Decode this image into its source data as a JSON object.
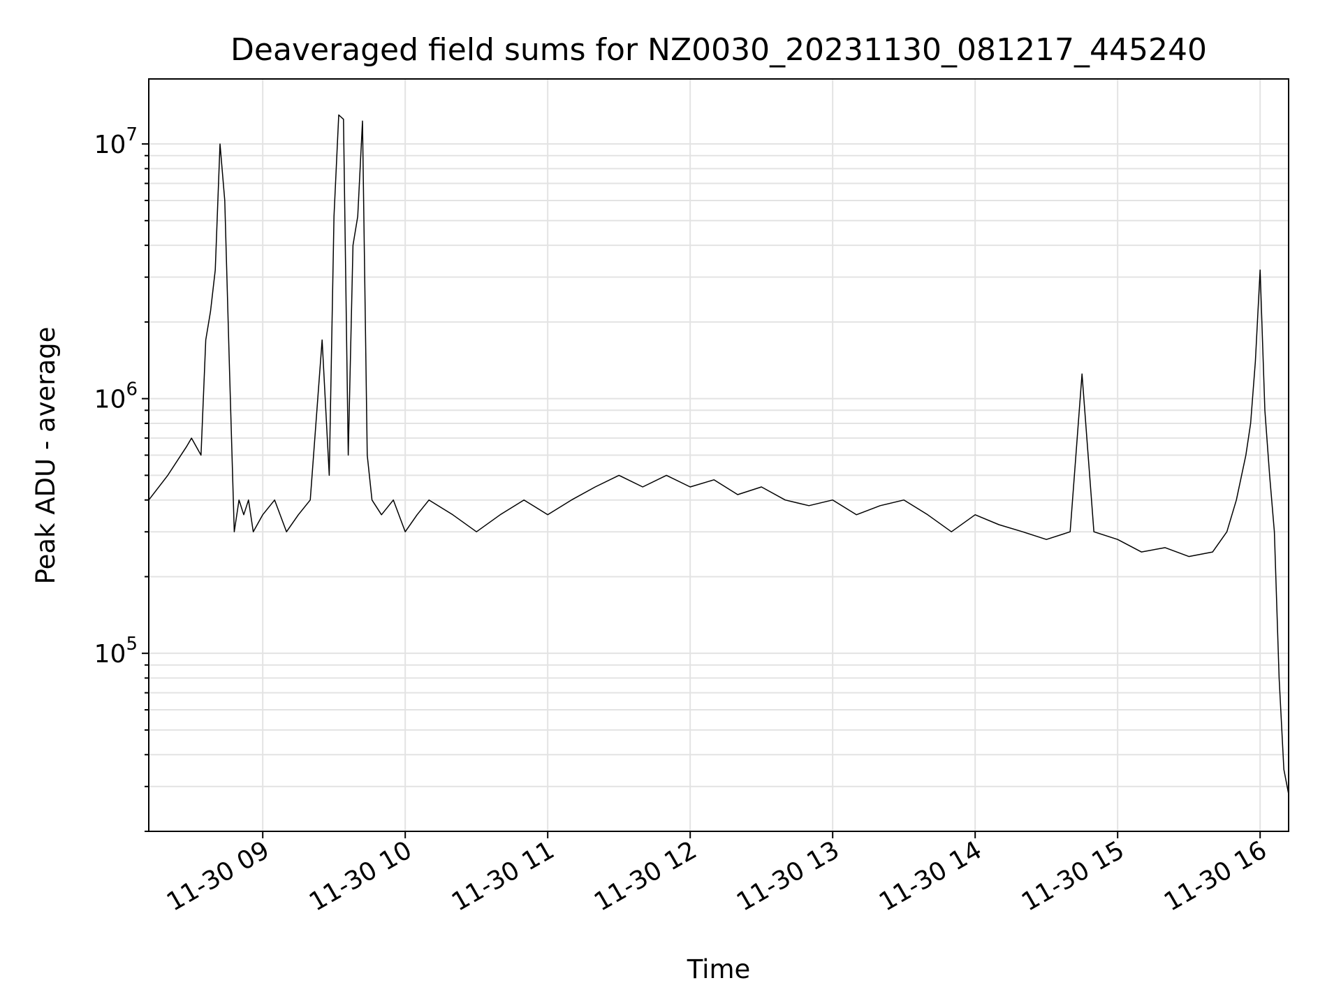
{
  "chart_data": {
    "type": "line",
    "title": "Deaveraged field sums for NZ0030_20231130_081217_445240",
    "xlabel": "Time",
    "ylabel": "Peak ADU - average",
    "yscale": "log",
    "grid": true,
    "line_color": "#000000",
    "grid_color": "#e3e3e3",
    "xlim": [
      "2023-11-30 08:12",
      "2023-11-30 16:12"
    ],
    "ylim": [
      20000,
      18000000
    ],
    "x_ticks": [
      {
        "t": "2023-11-30 09:00",
        "label": "11-30 09"
      },
      {
        "t": "2023-11-30 10:00",
        "label": "11-30 10"
      },
      {
        "t": "2023-11-30 11:00",
        "label": "11-30 11"
      },
      {
        "t": "2023-11-30 12:00",
        "label": "11-30 12"
      },
      {
        "t": "2023-11-30 13:00",
        "label": "11-30 13"
      },
      {
        "t": "2023-11-30 14:00",
        "label": "11-30 14"
      },
      {
        "t": "2023-11-30 15:00",
        "label": "11-30 15"
      },
      {
        "t": "2023-11-30 16:00",
        "label": "11-30 16"
      }
    ],
    "y_ticks": [
      {
        "value": 100000,
        "base": "10",
        "exp": "5"
      },
      {
        "value": 1000000,
        "base": "10",
        "exp": "6"
      },
      {
        "value": 10000000,
        "base": "10",
        "exp": "7"
      }
    ],
    "series": [
      {
        "x": [
          "2023-11-30 08:12",
          "2023-11-30 08:20",
          "2023-11-30 08:28",
          "2023-11-30 08:30",
          "2023-11-30 08:34",
          "2023-11-30 08:36",
          "2023-11-30 08:38",
          "2023-11-30 08:40",
          "2023-11-30 08:42",
          "2023-11-30 08:44",
          "2023-11-30 08:46",
          "2023-11-30 08:48",
          "2023-11-30 08:50",
          "2023-11-30 08:52",
          "2023-11-30 08:54",
          "2023-11-30 08:56",
          "2023-11-30 09:00",
          "2023-11-30 09:05",
          "2023-11-30 09:10",
          "2023-11-30 09:15",
          "2023-11-30 09:20",
          "2023-11-30 09:25",
          "2023-11-30 09:28",
          "2023-11-30 09:30",
          "2023-11-30 09:32",
          "2023-11-30 09:34",
          "2023-11-30 09:36",
          "2023-11-30 09:38",
          "2023-11-30 09:40",
          "2023-11-30 09:42",
          "2023-11-30 09:44",
          "2023-11-30 09:46",
          "2023-11-30 09:50",
          "2023-11-30 09:55",
          "2023-11-30 10:00",
          "2023-11-30 10:05",
          "2023-11-30 10:10",
          "2023-11-30 10:20",
          "2023-11-30 10:30",
          "2023-11-30 10:40",
          "2023-11-30 10:50",
          "2023-11-30 11:00",
          "2023-11-30 11:10",
          "2023-11-30 11:20",
          "2023-11-30 11:30",
          "2023-11-30 11:40",
          "2023-11-30 11:50",
          "2023-11-30 12:00",
          "2023-11-30 12:10",
          "2023-11-30 12:20",
          "2023-11-30 12:30",
          "2023-11-30 12:40",
          "2023-11-30 12:50",
          "2023-11-30 13:00",
          "2023-11-30 13:10",
          "2023-11-30 13:20",
          "2023-11-30 13:30",
          "2023-11-30 13:40",
          "2023-11-30 13:50",
          "2023-11-30 14:00",
          "2023-11-30 14:10",
          "2023-11-30 14:20",
          "2023-11-30 14:30",
          "2023-11-30 14:40",
          "2023-11-30 14:45",
          "2023-11-30 14:50",
          "2023-11-30 15:00",
          "2023-11-30 15:10",
          "2023-11-30 15:20",
          "2023-11-30 15:30",
          "2023-11-30 15:40",
          "2023-11-30 15:46",
          "2023-11-30 15:50",
          "2023-11-30 15:54",
          "2023-11-30 15:56",
          "2023-11-30 15:58",
          "2023-11-30 16:00",
          "2023-11-30 16:02",
          "2023-11-30 16:04",
          "2023-11-30 16:06",
          "2023-11-30 16:08",
          "2023-11-30 16:10",
          "2023-11-30 16:12"
        ],
        "y": [
          400000,
          500000,
          650000,
          700000,
          600000,
          1700000,
          2200000,
          3200000,
          10000000,
          6000000,
          1300000,
          300000,
          400000,
          350000,
          400000,
          300000,
          350000,
          400000,
          300000,
          350000,
          400000,
          1700000,
          500000,
          5200000,
          13000000,
          12500000,
          600000,
          4000000,
          5200000,
          12300000,
          600000,
          400000,
          350000,
          400000,
          300000,
          350000,
          400000,
          350000,
          300000,
          350000,
          400000,
          350000,
          400000,
          450000,
          500000,
          450000,
          500000,
          450000,
          480000,
          420000,
          450000,
          400000,
          380000,
          400000,
          350000,
          380000,
          400000,
          350000,
          300000,
          350000,
          320000,
          300000,
          280000,
          300000,
          1250000,
          300000,
          280000,
          250000,
          260000,
          240000,
          250000,
          300000,
          400000,
          600000,
          800000,
          1400000,
          3200000,
          900000,
          500000,
          300000,
          80000,
          35000,
          28000
        ]
      }
    ]
  }
}
